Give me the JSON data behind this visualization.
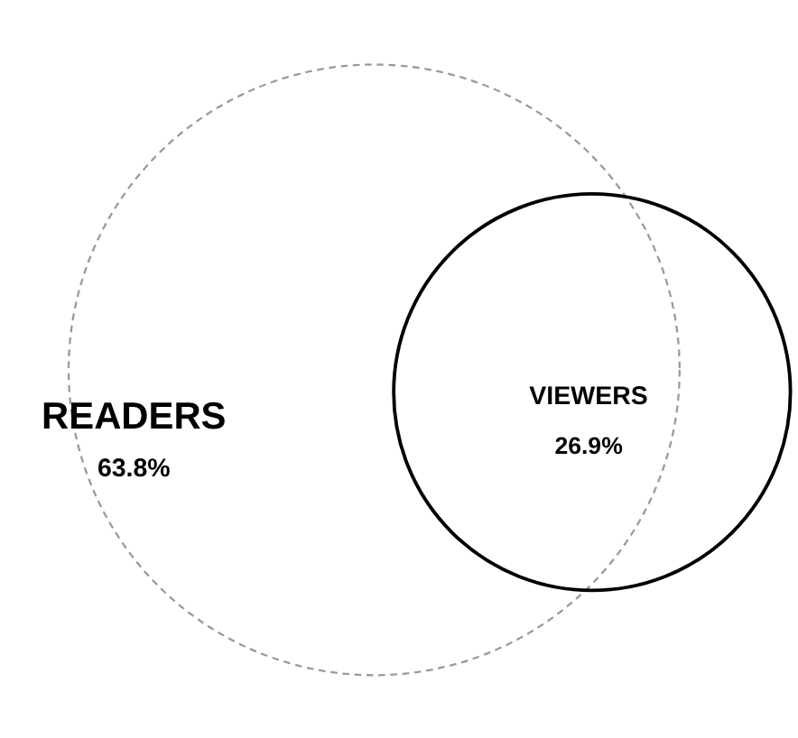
{
  "chart_data": {
    "type": "other",
    "categories": [
      "READERS",
      "VIEWERS"
    ],
    "values": [
      63.8,
      26.9
    ],
    "value_labels": [
      "63.8%",
      "26.9%"
    ],
    "colors": [
      "#9a9a9a",
      "#000000"
    ]
  }
}
